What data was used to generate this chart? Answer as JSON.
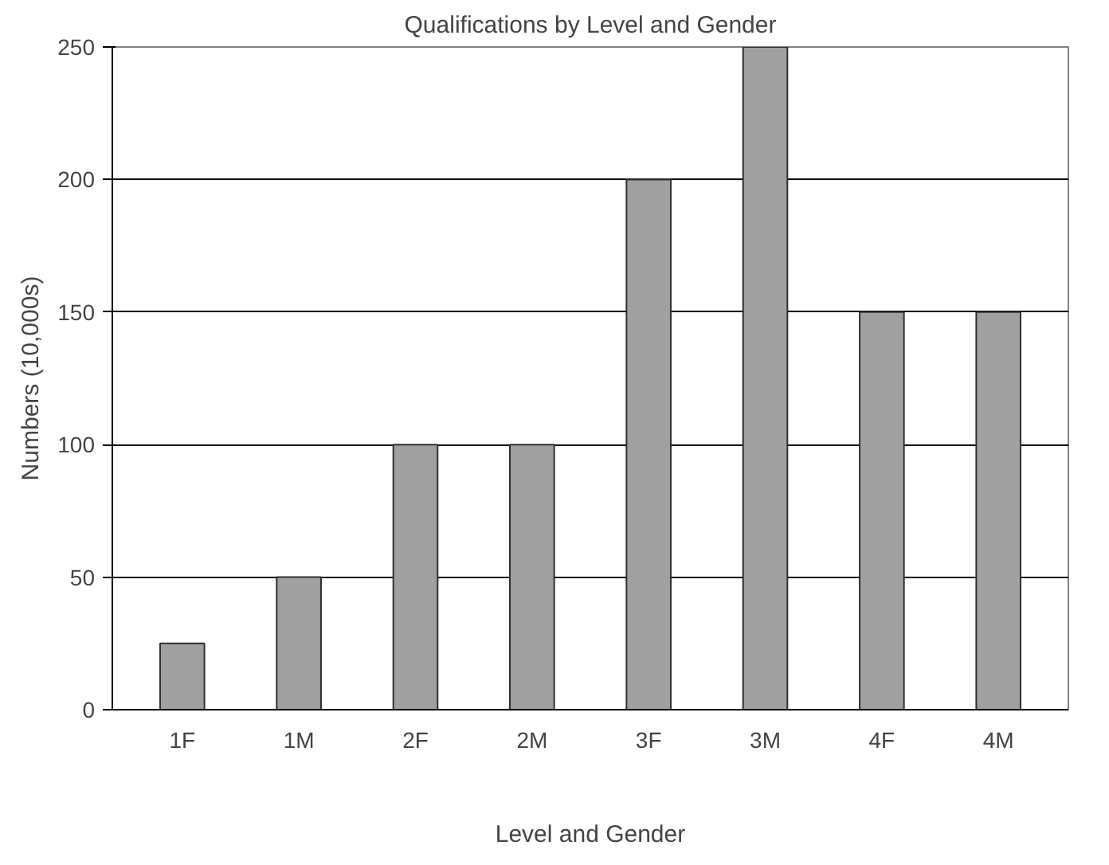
{
  "chart_data": {
    "type": "bar",
    "title": "Qualifications by Level and Gender",
    "xlabel": "Level and Gender",
    "ylabel": "Numbers (10,000s)",
    "categories": [
      "1F",
      "1M",
      "2F",
      "2M",
      "3F",
      "3M",
      "4F",
      "4M"
    ],
    "values": [
      25,
      50,
      100,
      100,
      200,
      250,
      150,
      150
    ],
    "color": "#a0a0a0",
    "ylim": [
      0,
      250
    ],
    "yticks": [
      0,
      50,
      100,
      150,
      200,
      250
    ],
    "grid": "y"
  }
}
